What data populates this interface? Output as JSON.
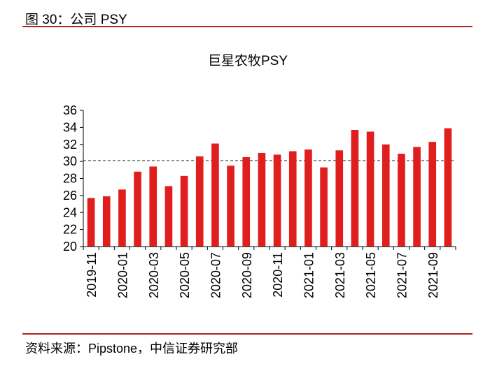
{
  "figure": {
    "title": "图 30：公司 PSY",
    "source": "资料来源：Pipstone，中信证券研究部"
  },
  "colors": {
    "bar": "#e01e1e",
    "rule": "#b22222",
    "reference_line": "#333333"
  },
  "chart_data": {
    "type": "bar",
    "title": "巨星农牧PSY",
    "categories": [
      "2019-11",
      "2019-12",
      "2020-01",
      "2020-02",
      "2020-03",
      "2020-04",
      "2020-05",
      "2020-06",
      "2020-07",
      "2020-08",
      "2020-09",
      "2020-10",
      "2020-11",
      "2020-12",
      "2021-01",
      "2021-02",
      "2021-03",
      "2021-04",
      "2021-05",
      "2021-06",
      "2021-07",
      "2021-08",
      "2021-09",
      "2021-10"
    ],
    "x_tick_labels": [
      "2019-11",
      "2020-01",
      "2020-03",
      "2020-05",
      "2020-07",
      "2020-09",
      "2020-11",
      "2021-01",
      "2021-03",
      "2021-05",
      "2021-07",
      "2021-09"
    ],
    "values": [
      25.7,
      25.9,
      26.7,
      28.8,
      29.4,
      27.1,
      28.3,
      30.6,
      32.1,
      29.5,
      30.5,
      31.0,
      30.8,
      31.2,
      31.4,
      29.3,
      31.3,
      33.7,
      33.5,
      32.0,
      30.9,
      31.7,
      32.3,
      33.9
    ],
    "reference_line": 30.1,
    "ylim": [
      20,
      36
    ],
    "yticks": [
      20,
      22,
      24,
      26,
      28,
      30,
      32,
      34,
      36
    ],
    "xlabel": "",
    "ylabel": ""
  }
}
